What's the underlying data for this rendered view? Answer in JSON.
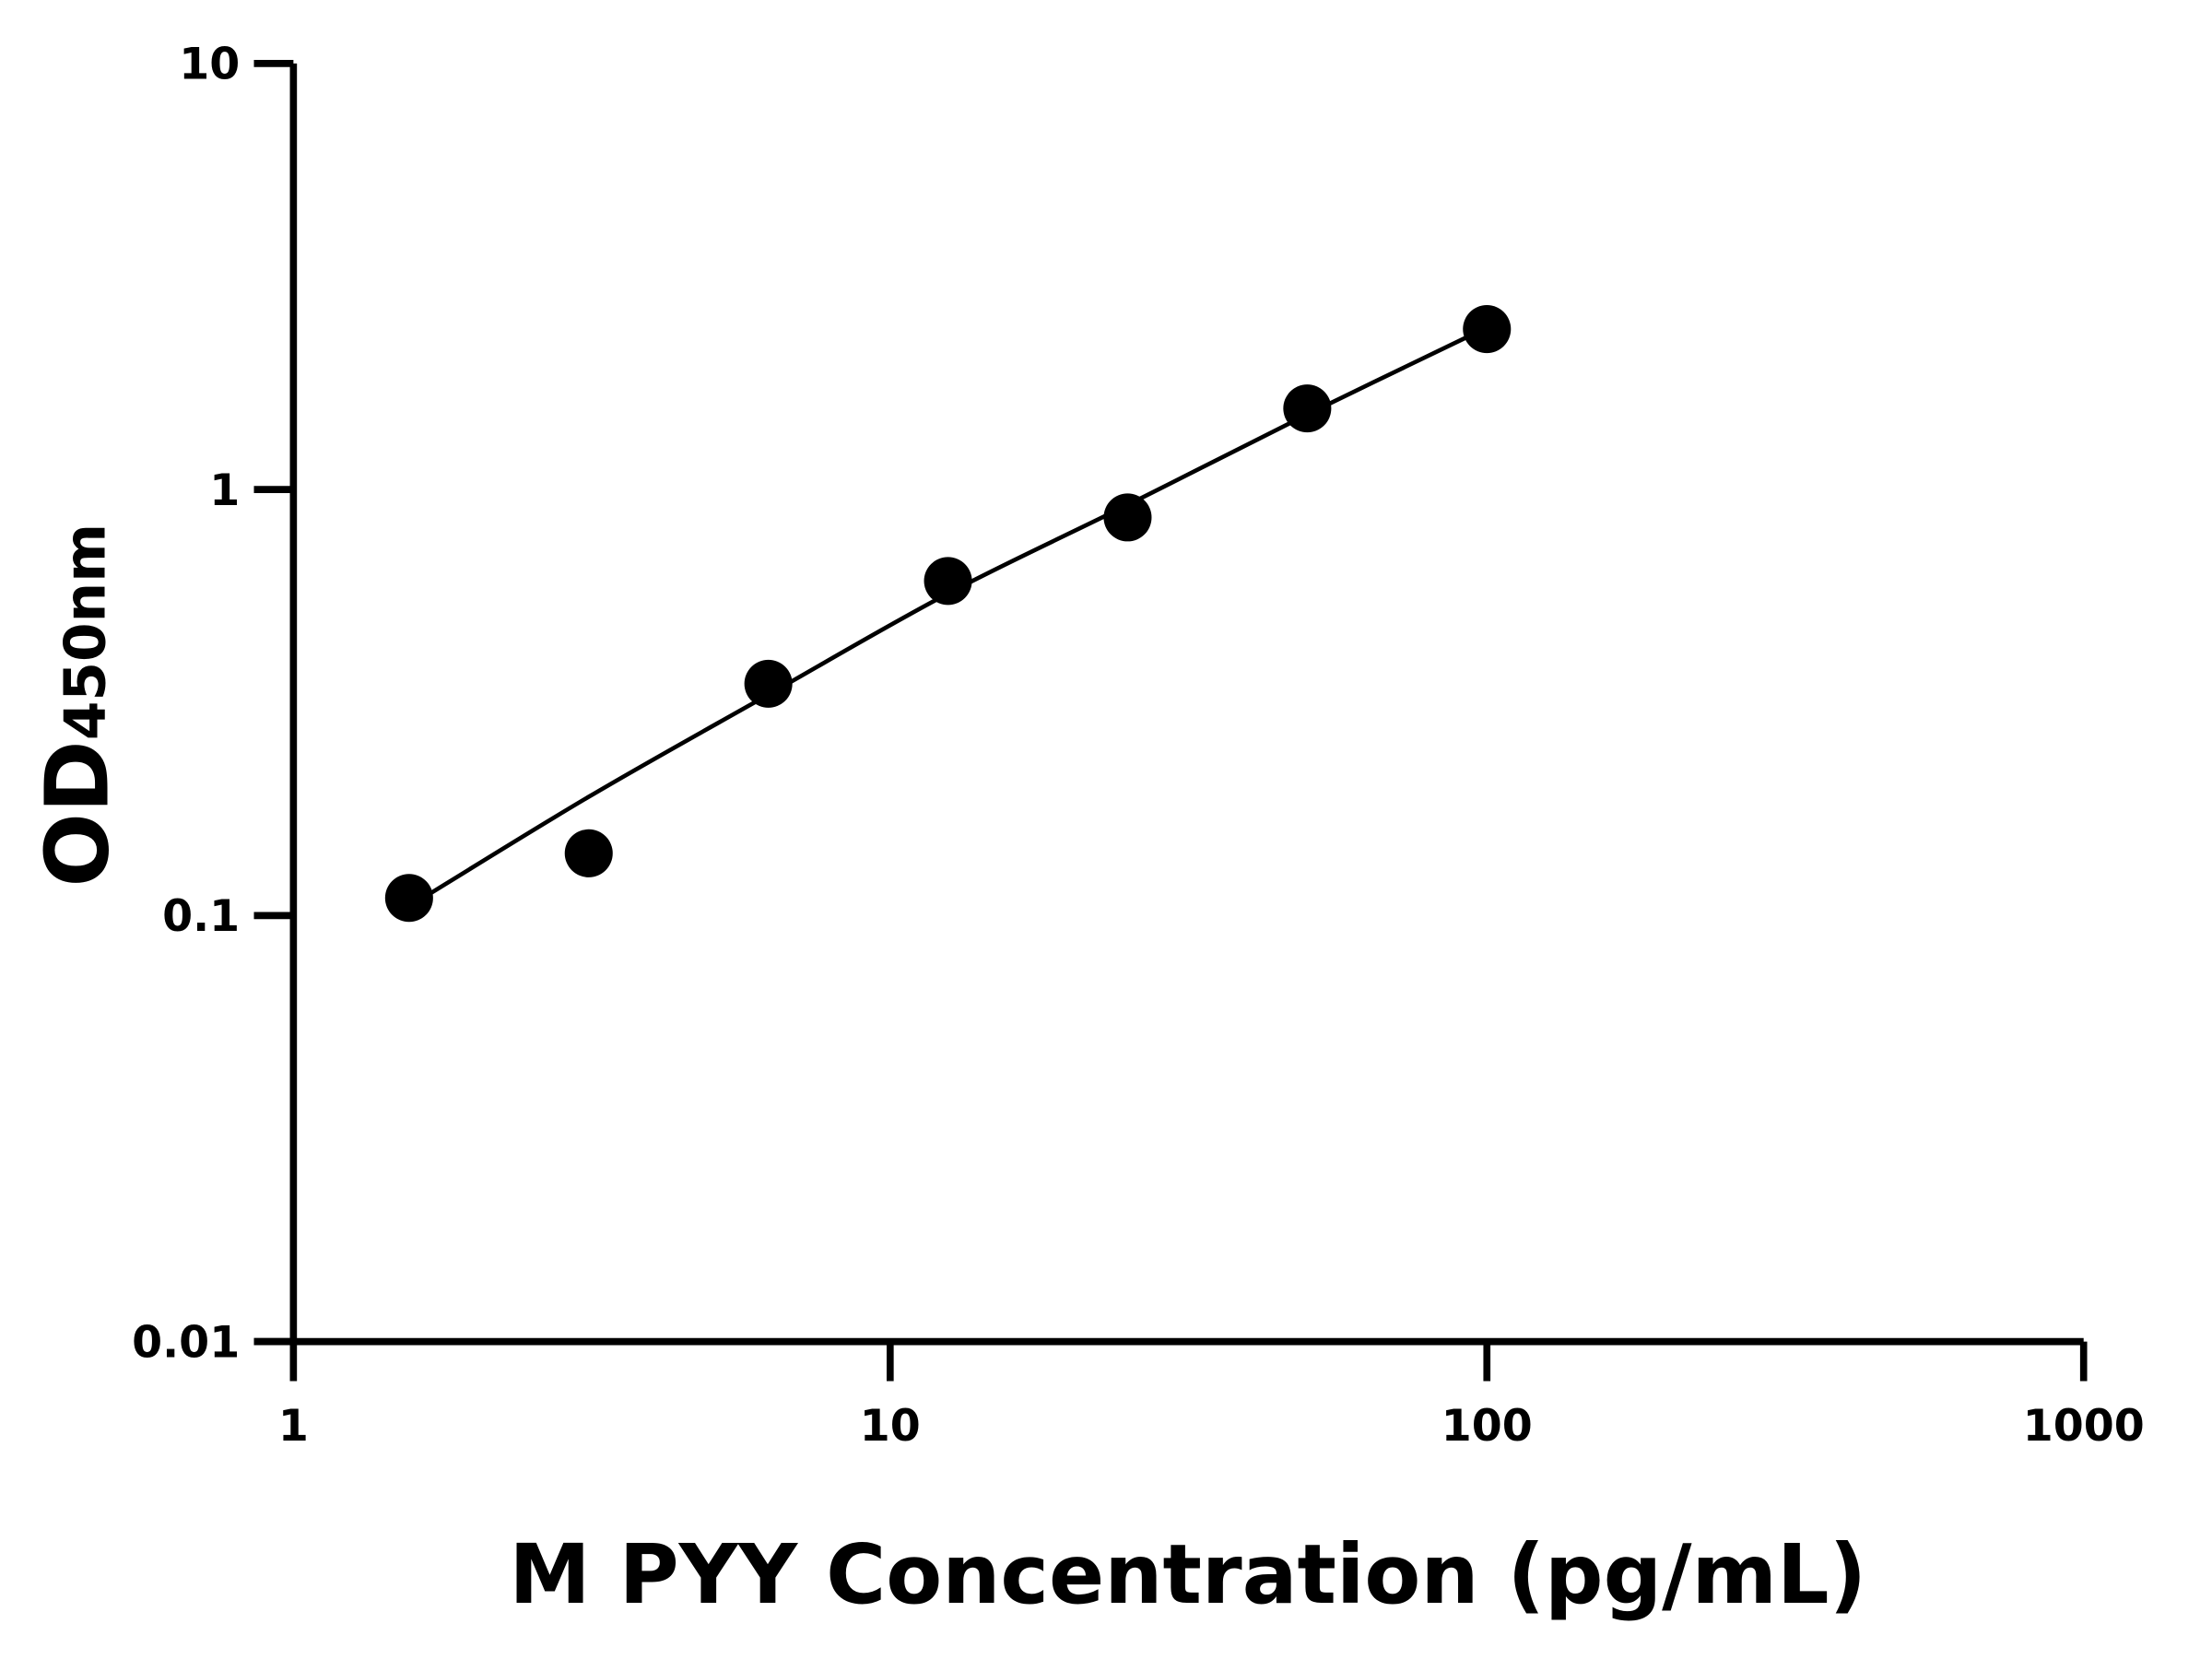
{
  "chart_data": {
    "type": "scatter",
    "title": "",
    "xlabel": "M PYY Concentration (pg/mL)",
    "ylabel_main": "OD",
    "ylabel_sub": "450nm",
    "xscale": "log",
    "yscale": "log",
    "xlim": [
      1,
      1000
    ],
    "ylim": [
      0.01,
      10
    ],
    "x_ticks": [
      "1",
      "10",
      "100",
      "1000"
    ],
    "y_ticks": [
      "0.01",
      "0.1",
      "1",
      "10"
    ],
    "grid": false,
    "legend": "none",
    "points": {
      "x": [
        1.5625,
        3.125,
        6.25,
        12.5,
        25,
        50,
        100
      ],
      "y": [
        0.11,
        0.14,
        0.35,
        0.61,
        0.86,
        1.55,
        2.38
      ]
    },
    "fit_curve": {
      "x": [
        1.5625,
        3.125,
        6.25,
        12.5,
        25,
        50,
        100
      ],
      "y": [
        0.105,
        0.19,
        0.33,
        0.57,
        0.92,
        1.5,
        2.4
      ]
    },
    "colors": {
      "points": "#000000",
      "line": "#000000",
      "axes": "#000000"
    }
  }
}
